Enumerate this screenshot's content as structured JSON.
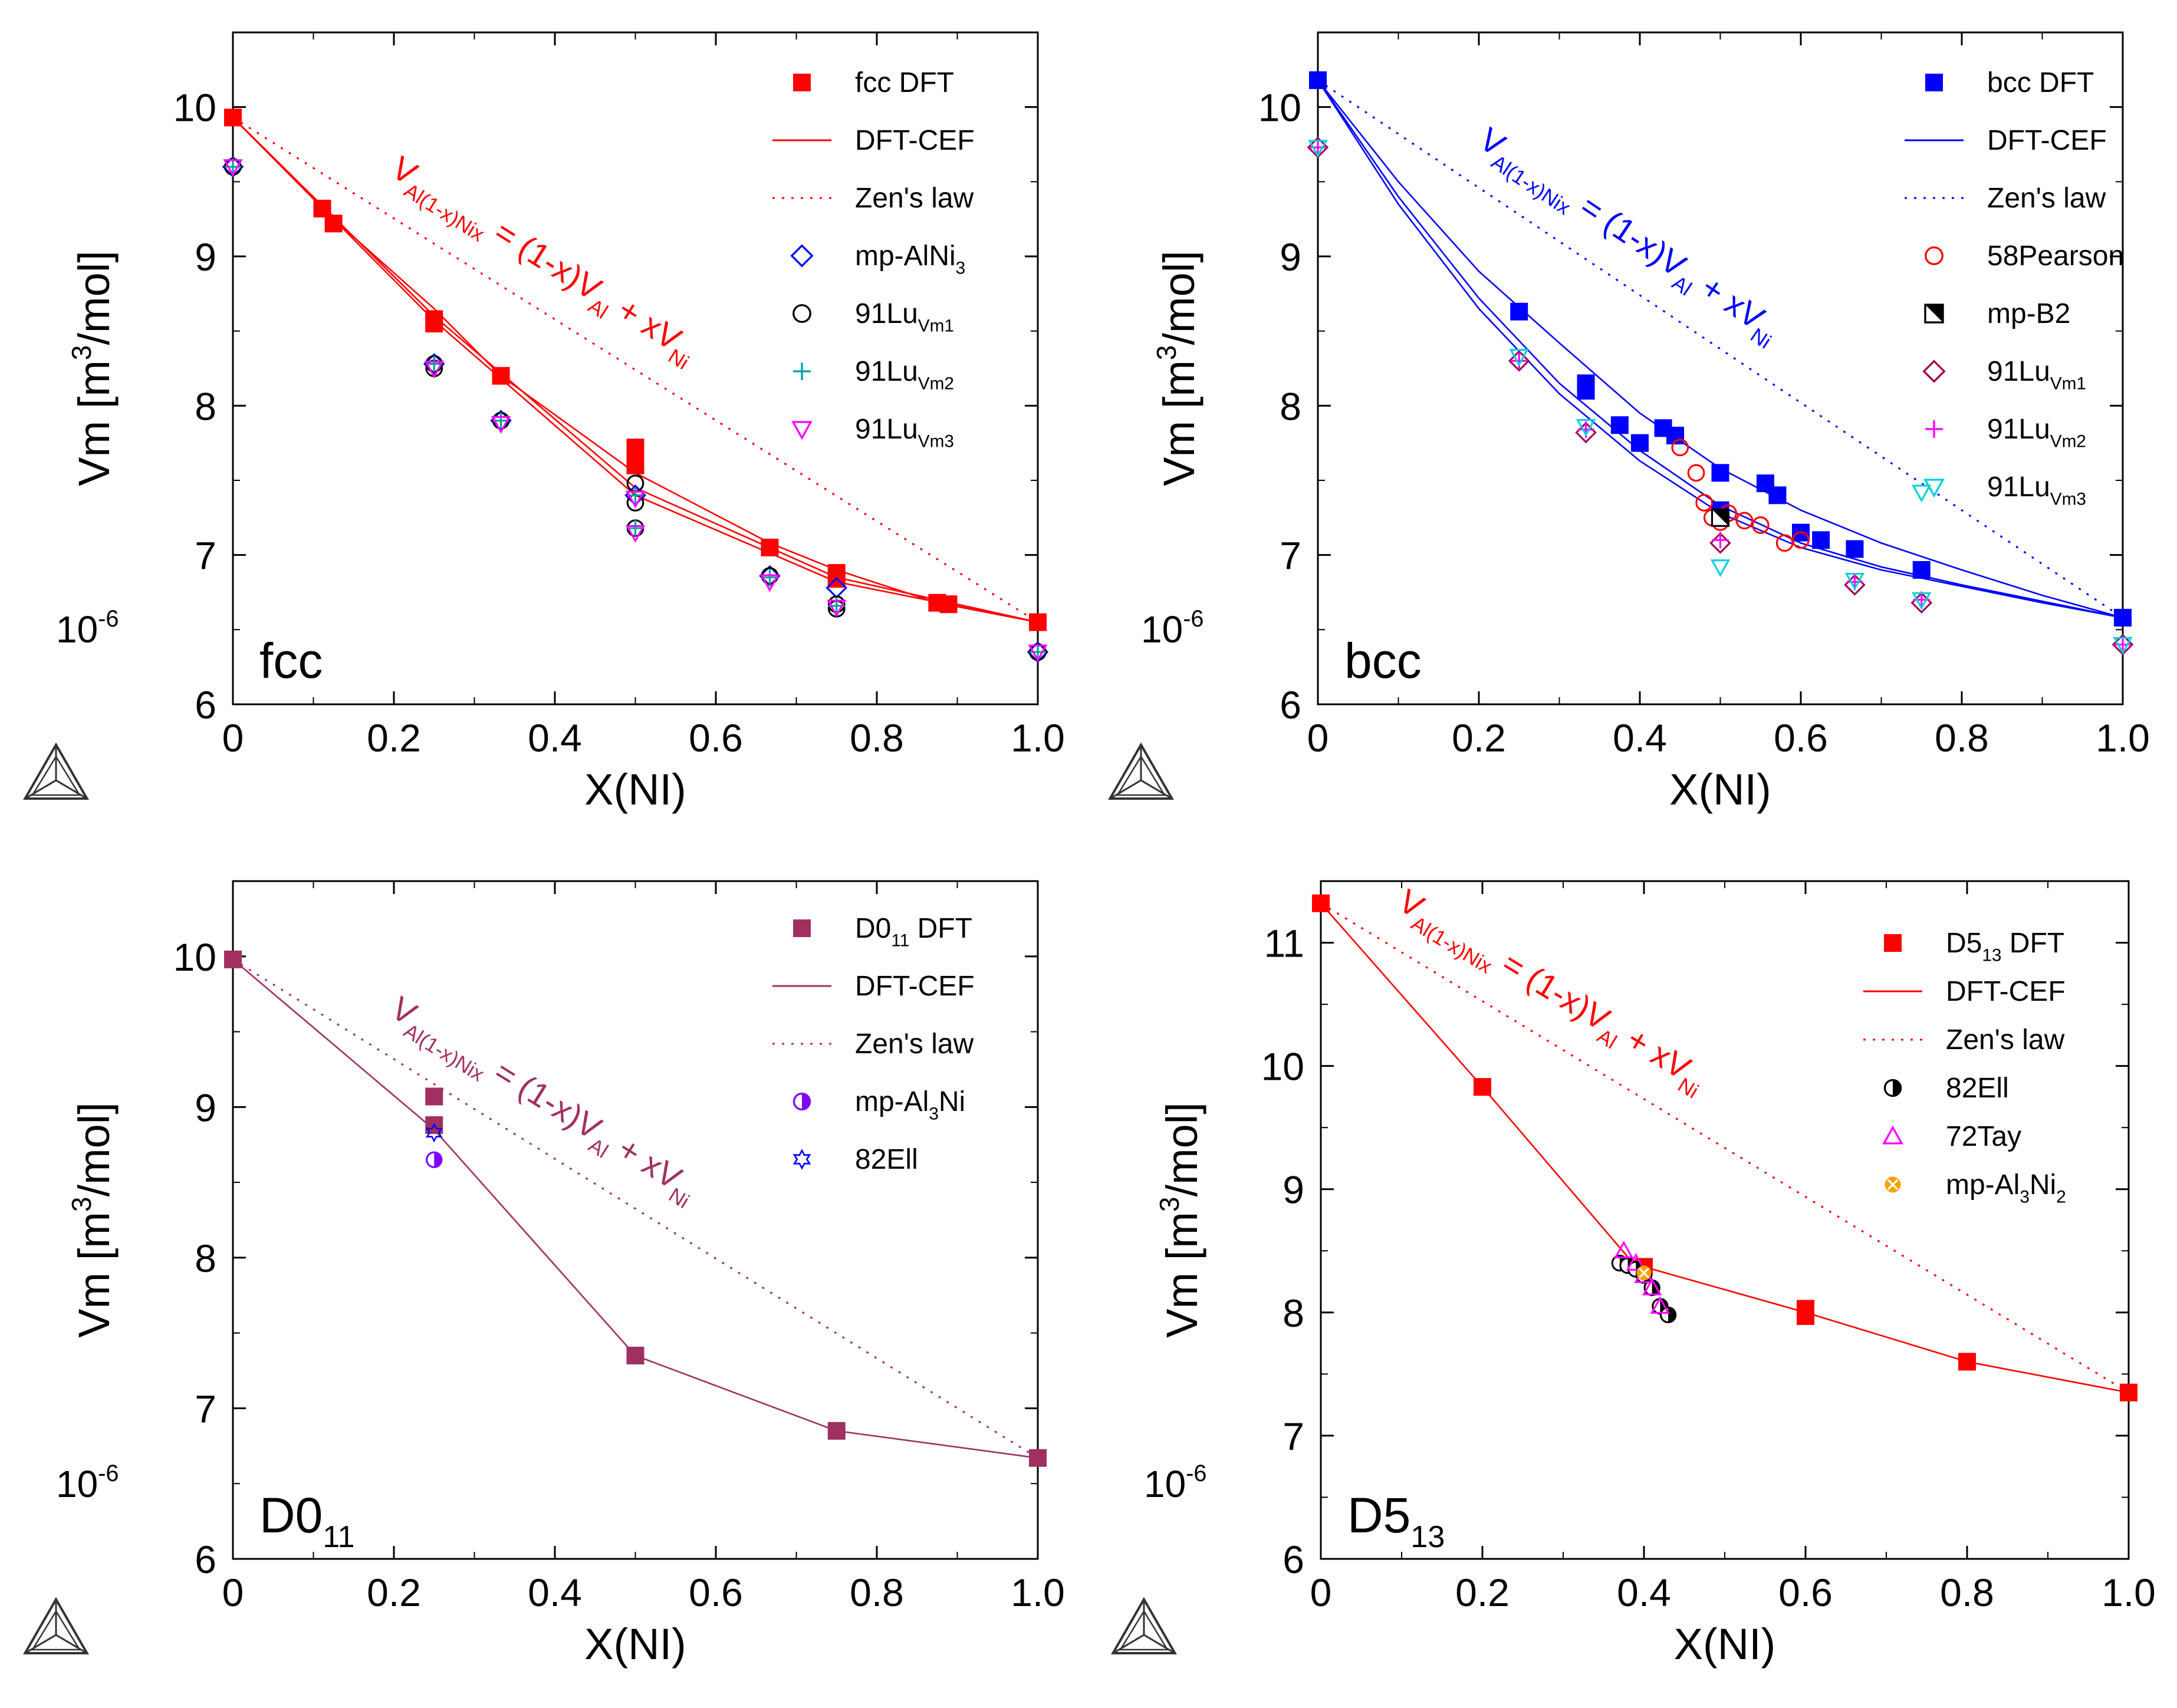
{
  "chart_data": [
    {
      "type": "line",
      "panel_label": "fcc",
      "xlabel": "X(NI)",
      "ylabel": "Vm [m³/mol]",
      "scale_note": "10⁻⁶",
      "xlim": [
        0,
        1
      ],
      "ylim": [
        6,
        10.5
      ],
      "xticks": [
        0,
        0.2,
        0.4,
        0.6,
        0.8,
        1.0
      ],
      "xtick_labels": [
        "0",
        "0.2",
        "0.4",
        "0.6",
        "0.8",
        "1.0"
      ],
      "yticks": [
        6,
        7,
        8,
        9,
        10
      ],
      "color": "#ff0000",
      "annotation": "V_Al(1-x)Nix = (1-x)V_Al + xV_Ni",
      "legend": [
        {
          "label": "fcc DFT",
          "marker": "square-filled",
          "color": "#ff0000"
        },
        {
          "label": "DFT-CEF",
          "marker": "solid-line",
          "color": "#ff0000"
        },
        {
          "label": "Zen's law",
          "marker": "dotted-line",
          "color": "#ff0000"
        },
        {
          "label": "mp-AlNi3",
          "marker": "diamond-open",
          "color": "#0000ff"
        },
        {
          "label": "91Lu_Vm1",
          "marker": "circle-open",
          "color": "#000000"
        },
        {
          "label": "91Lu_Vm2",
          "marker": "plus",
          "color": "#00a0a0"
        },
        {
          "label": "91Lu_Vm3",
          "marker": "triangle-down-open",
          "color": "#ff00ff"
        }
      ],
      "lines": [
        {
          "name": "DFT-CEF 1",
          "style": "solid",
          "x": [
            0,
            0.125,
            0.25,
            0.333,
            0.5,
            0.667,
            0.75,
            0.875,
            1.0
          ],
          "y": [
            9.93,
            9.25,
            8.65,
            8.2,
            7.55,
            7.08,
            6.9,
            6.68,
            6.55
          ]
        },
        {
          "name": "DFT-CEF 2",
          "style": "solid",
          "x": [
            0,
            0.25,
            0.5,
            0.75,
            1.0
          ],
          "y": [
            9.93,
            8.6,
            7.45,
            6.85,
            6.55
          ]
        },
        {
          "name": "DFT-CEF 3",
          "style": "solid",
          "x": [
            0,
            0.25,
            0.5,
            0.75,
            1.0
          ],
          "y": [
            9.93,
            8.57,
            7.4,
            6.82,
            6.55
          ]
        },
        {
          "name": "Zen's law",
          "style": "dotted",
          "x": [
            0,
            1.0
          ],
          "y": [
            9.93,
            6.55
          ]
        }
      ],
      "series": [
        {
          "name": "fcc DFT",
          "marker": "square-filled",
          "color": "#ff0000",
          "x": [
            0,
            0.111,
            0.125,
            0.25,
            0.25,
            0.333,
            0.5,
            0.5,
            0.5,
            0.667,
            0.75,
            0.75,
            0.875,
            0.889,
            1.0
          ],
          "y": [
            9.93,
            9.32,
            9.22,
            8.58,
            8.55,
            8.2,
            7.72,
            7.65,
            7.6,
            7.05,
            6.88,
            6.84,
            6.68,
            6.67,
            6.55
          ]
        },
        {
          "name": "mp-AlNi3",
          "marker": "diamond-open",
          "color": "#0000ff",
          "x": [
            0,
            0.25,
            0.333,
            0.5,
            0.667,
            0.75,
            1.0
          ],
          "y": [
            9.6,
            8.28,
            7.9,
            7.4,
            6.86,
            6.78,
            6.35
          ]
        },
        {
          "name": "91Lu_Vm1",
          "marker": "circle-open",
          "color": "#000000",
          "x": [
            0,
            0.25,
            0.25,
            0.333,
            0.5,
            0.5,
            0.5,
            0.667,
            0.75,
            0.75,
            1.0
          ],
          "y": [
            9.6,
            8.28,
            8.25,
            7.9,
            7.48,
            7.35,
            7.18,
            6.86,
            6.67,
            6.64,
            6.35
          ]
        },
        {
          "name": "91Lu_Vm2",
          "marker": "plus",
          "color": "#00a0a0",
          "x": [
            0,
            0.25,
            0.333,
            0.5,
            0.5,
            0.667,
            0.75,
            1.0
          ],
          "y": [
            9.6,
            8.28,
            7.9,
            7.4,
            7.18,
            6.85,
            6.66,
            6.35
          ]
        },
        {
          "name": "91Lu_Vm3",
          "marker": "triangle-down-open",
          "color": "#ff00ff",
          "x": [
            0,
            0.25,
            0.333,
            0.5,
            0.5,
            0.667,
            0.75,
            1.0
          ],
          "y": [
            9.6,
            8.25,
            7.88,
            7.38,
            7.15,
            6.82,
            6.65,
            6.35
          ]
        }
      ]
    },
    {
      "type": "line",
      "panel_label": "bcc",
      "xlabel": "X(NI)",
      "ylabel": "Vm [m³/mol]",
      "scale_note": "10⁻⁶",
      "xlim": [
        0,
        1
      ],
      "ylim": [
        6,
        10.5
      ],
      "xticks": [
        0,
        0.2,
        0.4,
        0.6,
        0.8,
        1.0
      ],
      "xtick_labels": [
        "0",
        "0.2",
        "0.4",
        "0.6",
        "0.8",
        "1.0"
      ],
      "yticks": [
        6,
        7,
        8,
        9,
        10
      ],
      "color": "#0000ff",
      "annotation": "V_Al(1-x)Nix = (1-x)V_Al + xV_Ni",
      "legend": [
        {
          "label": "bcc DFT",
          "marker": "square-filled",
          "color": "#0000ff"
        },
        {
          "label": "DFT-CEF",
          "marker": "solid-line",
          "color": "#0000ff"
        },
        {
          "label": "Zen's law",
          "marker": "dotted-line",
          "color": "#0000ff"
        },
        {
          "label": "58Pearson",
          "marker": "circle-open",
          "color": "#ff0000"
        },
        {
          "label": "mp-B2",
          "marker": "square-half",
          "color": "#000000"
        },
        {
          "label": "91Lu_Vm1",
          "marker": "diamond-open",
          "color": "#a00050"
        },
        {
          "label": "91Lu_Vm2",
          "marker": "plus",
          "color": "#ff00ff"
        },
        {
          "label": "91Lu_Vm3",
          "marker": "triangle-down-open",
          "color": "#00d0e0"
        }
      ],
      "lines": [
        {
          "name": "DFT-CEF 1",
          "style": "solid",
          "x": [
            0,
            0.1,
            0.2,
            0.3,
            0.4,
            0.5,
            0.6,
            0.7,
            0.8,
            0.9,
            1.0
          ],
          "y": [
            10.18,
            9.5,
            8.9,
            8.42,
            7.95,
            7.58,
            7.3,
            7.08,
            6.9,
            6.73,
            6.58
          ]
        },
        {
          "name": "DFT-CEF 2",
          "style": "solid",
          "x": [
            0,
            0.1,
            0.2,
            0.3,
            0.4,
            0.5,
            0.6,
            0.7,
            0.8,
            0.9,
            1.0
          ],
          "y": [
            10.18,
            9.4,
            8.72,
            8.15,
            7.7,
            7.33,
            7.08,
            6.92,
            6.8,
            6.69,
            6.58
          ]
        },
        {
          "name": "DFT-CEF 3",
          "style": "solid",
          "x": [
            0,
            0.1,
            0.2,
            0.3,
            0.4,
            0.5,
            0.6,
            0.7,
            0.8,
            0.9,
            1.0
          ],
          "y": [
            10.18,
            9.35,
            8.65,
            8.08,
            7.63,
            7.28,
            7.05,
            6.9,
            6.79,
            6.68,
            6.58
          ]
        },
        {
          "name": "Zen's law",
          "style": "dotted",
          "x": [
            0,
            1.0
          ],
          "y": [
            10.18,
            6.58
          ]
        }
      ],
      "series": [
        {
          "name": "bcc DFT",
          "marker": "square-filled",
          "color": "#0000ff",
          "x": [
            0,
            0.25,
            0.333,
            0.333,
            0.375,
            0.4,
            0.429,
            0.444,
            0.5,
            0.5,
            0.556,
            0.571,
            0.6,
            0.625,
            0.667,
            0.75,
            1.0
          ],
          "y": [
            10.18,
            8.63,
            8.15,
            8.1,
            7.87,
            7.75,
            7.85,
            7.8,
            7.55,
            7.3,
            7.48,
            7.4,
            7.15,
            7.1,
            7.04,
            6.9,
            6.58
          ]
        },
        {
          "name": "58Pearson",
          "marker": "circle-open",
          "color": "#ff0000",
          "x": [
            0.45,
            0.47,
            0.48,
            0.49,
            0.5,
            0.51,
            0.53,
            0.55,
            0.58,
            0.6
          ],
          "y": [
            7.72,
            7.55,
            7.35,
            7.25,
            7.22,
            7.28,
            7.23,
            7.2,
            7.08,
            7.1
          ]
        },
        {
          "name": "mp-B2",
          "marker": "square-half",
          "color": "#000000",
          "x": [
            0.5
          ],
          "y": [
            7.25
          ]
        },
        {
          "name": "91Lu_Vm1",
          "marker": "diamond-open",
          "color": "#a00050",
          "x": [
            0,
            0.25,
            0.333,
            0.5,
            0.667,
            0.75,
            1.0
          ],
          "y": [
            9.73,
            8.3,
            7.82,
            7.08,
            6.8,
            6.68,
            6.4
          ]
        },
        {
          "name": "91Lu_Vm2",
          "marker": "plus",
          "color": "#ff00ff",
          "x": [
            0,
            0.25,
            0.333,
            0.5,
            0.667,
            0.75,
            1.0
          ],
          "y": [
            9.73,
            8.3,
            7.84,
            7.1,
            6.82,
            6.7,
            6.4
          ]
        },
        {
          "name": "91Lu_Vm3",
          "marker": "triangle-down-open",
          "color": "#00d0e0",
          "x": [
            0,
            0.25,
            0.333,
            0.5,
            0.667,
            0.75,
            0.75,
            1.0
          ],
          "y": [
            9.73,
            8.33,
            7.86,
            6.92,
            6.83,
            6.7,
            7.42,
            6.4
          ]
        }
      ]
    },
    {
      "type": "line",
      "panel_label": "D0₁₁",
      "xlabel": "X(NI)",
      "ylabel": "Vm [m³/mol]",
      "scale_note": "10⁻⁶",
      "xlim": [
        0,
        1
      ],
      "ylim": [
        6,
        10.5
      ],
      "xticks": [
        0,
        0.2,
        0.4,
        0.6,
        0.8,
        1.0
      ],
      "xtick_labels": [
        "0",
        "0.2",
        "0.4",
        "0.6",
        "0.8",
        "1.0"
      ],
      "yticks": [
        6,
        7,
        8,
        9,
        10
      ],
      "color": "#a03060",
      "annotation": "V_Al(1-x)Nix = (1-x)V_Al + xV_Ni",
      "legend": [
        {
          "label": "D0₁₁ DFT",
          "marker": "square-filled",
          "color": "#a03060"
        },
        {
          "label": "DFT-CEF",
          "marker": "solid-line",
          "color": "#a03060"
        },
        {
          "label": "Zen's law",
          "marker": "dotted-line",
          "color": "#d02050"
        },
        {
          "label": "mp-Al₃Ni",
          "marker": "circle-half",
          "color": "#8000ff"
        },
        {
          "label": "82Ell",
          "marker": "star",
          "color": "#0000ff"
        }
      ],
      "lines": [
        {
          "name": "DFT-CEF",
          "style": "solid",
          "x": [
            0,
            0.25,
            0.5,
            0.75,
            1.0
          ],
          "y": [
            9.98,
            8.85,
            7.35,
            6.85,
            6.67
          ]
        },
        {
          "name": "Zen's law",
          "style": "dotted",
          "x": [
            0,
            1.0
          ],
          "y": [
            9.98,
            6.67
          ]
        }
      ],
      "series": [
        {
          "name": "D0₁₁ DFT",
          "marker": "square-filled",
          "color": "#a03060",
          "x": [
            0,
            0.25,
            0.25,
            0.5,
            0.75,
            1.0
          ],
          "y": [
            9.98,
            9.07,
            8.88,
            7.35,
            6.85,
            6.67
          ]
        },
        {
          "name": "mp-Al₃Ni",
          "marker": "circle-half",
          "color": "#8000ff",
          "x": [
            0.25
          ],
          "y": [
            8.65
          ]
        },
        {
          "name": "82Ell",
          "marker": "star",
          "color": "#0000ff",
          "x": [
            0.25
          ],
          "y": [
            8.83
          ]
        }
      ]
    },
    {
      "type": "line",
      "panel_label": "D5₁₃",
      "xlabel": "X(NI)",
      "ylabel": "Vm [m³/mol]",
      "scale_note": "10⁻⁶",
      "xlim": [
        0,
        1
      ],
      "ylim": [
        6,
        11.5
      ],
      "xticks": [
        0,
        0.2,
        0.4,
        0.6,
        0.8,
        1.0
      ],
      "xtick_labels": [
        "0",
        "0.2",
        "0.4",
        "0.6",
        "0.8",
        "1.0"
      ],
      "yticks": [
        6,
        7,
        8,
        9,
        10,
        11
      ],
      "color": "#ff0000",
      "annotation": "V_Al(1-x)Nix = (1-x)V_Al + xV_Ni",
      "legend": [
        {
          "label": "D5₁₃ DFT",
          "marker": "square-filled",
          "color": "#ff0000"
        },
        {
          "label": "DFT-CEF",
          "marker": "solid-line",
          "color": "#ff0000"
        },
        {
          "label": "Zen's law",
          "marker": "dotted-line",
          "color": "#ff0000"
        },
        {
          "label": "82Ell",
          "marker": "circle-half",
          "color": "#000000"
        },
        {
          "label": "72Tay",
          "marker": "triangle-up-open",
          "color": "#ff00ff"
        },
        {
          "label": "mp-Al₃Ni₂",
          "marker": "circle-cross",
          "color": "#ffa000"
        }
      ],
      "lines": [
        {
          "name": "DFT-CEF",
          "style": "solid",
          "x": [
            0,
            0.2,
            0.38,
            0.4,
            0.6,
            0.8,
            1.0
          ],
          "y": [
            11.32,
            9.83,
            8.45,
            8.37,
            8.0,
            7.6,
            7.35
          ]
        },
        {
          "name": "Zen's law",
          "style": "dotted",
          "x": [
            0,
            1.0
          ],
          "y": [
            11.32,
            7.35
          ]
        }
      ],
      "series": [
        {
          "name": "D5₁₃ DFT",
          "marker": "square-filled",
          "color": "#ff0000",
          "x": [
            0,
            0.2,
            0.4,
            0.6,
            0.6,
            0.8,
            1.0
          ],
          "y": [
            11.32,
            9.83,
            8.37,
            8.03,
            7.97,
            7.6,
            7.35
          ]
        },
        {
          "name": "82Ell",
          "marker": "circle-half",
          "color": "#000000",
          "x": [
            0.37,
            0.38,
            0.39,
            0.4,
            0.41,
            0.42,
            0.43
          ],
          "y": [
            8.4,
            8.38,
            8.35,
            8.3,
            8.2,
            8.05,
            7.98
          ]
        },
        {
          "name": "72Tay",
          "marker": "triangle-up-open",
          "color": "#ff00ff",
          "x": [
            0.375,
            0.39,
            0.4,
            0.41,
            0.42
          ],
          "y": [
            8.5,
            8.4,
            8.3,
            8.2,
            8.05
          ]
        },
        {
          "name": "mp-Al₃Ni₂",
          "marker": "circle-cross",
          "color": "#ffa000",
          "x": [
            0.4
          ],
          "y": [
            8.32
          ]
        }
      ]
    }
  ]
}
